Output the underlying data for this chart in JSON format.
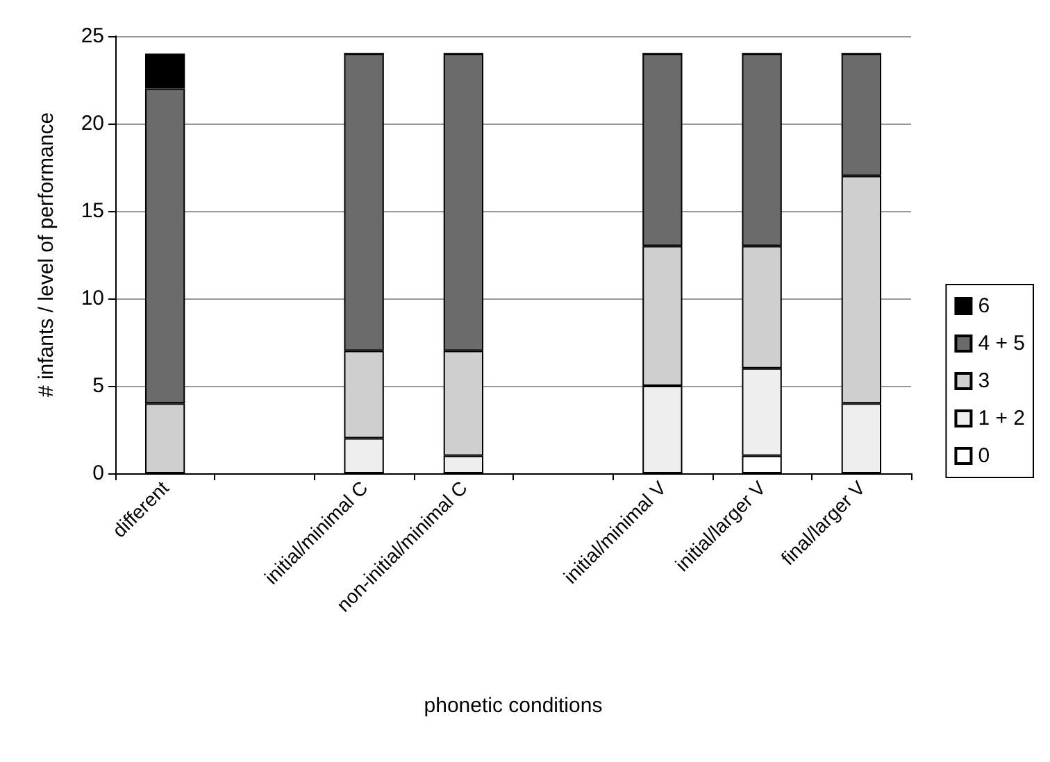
{
  "chart_data": {
    "type": "bar",
    "stacked": true,
    "xlabel": "phonetic conditions",
    "ylabel": "# infants / level of performance",
    "categories": [
      "different",
      null,
      "initial/minimal C",
      "non-initial/minimal C",
      null,
      "initial/minimal V",
      "initial/larger V",
      "final/larger V"
    ],
    "series": [
      {
        "name": "0",
        "color": "#ffffff",
        "values": [
          0,
          null,
          0,
          0,
          null,
          0,
          1,
          0
        ]
      },
      {
        "name": "1 + 2",
        "color": "#eeeeee",
        "values": [
          0,
          null,
          2,
          1,
          null,
          5,
          5,
          4
        ]
      },
      {
        "name": "3",
        "color": "#cfcfcf",
        "values": [
          4,
          null,
          5,
          6,
          null,
          8,
          7,
          13
        ]
      },
      {
        "name": "4 + 5",
        "color": "#6b6b6b",
        "values": [
          18,
          null,
          17,
          17,
          null,
          11,
          11,
          7
        ]
      },
      {
        "name": "6",
        "color": "#000000",
        "values": [
          2,
          null,
          0,
          0,
          null,
          0,
          0,
          0
        ]
      }
    ],
    "ylim": [
      0,
      25
    ],
    "yticks": [
      0,
      5,
      10,
      15,
      20,
      25
    ],
    "grid": "y",
    "legend": "right"
  }
}
